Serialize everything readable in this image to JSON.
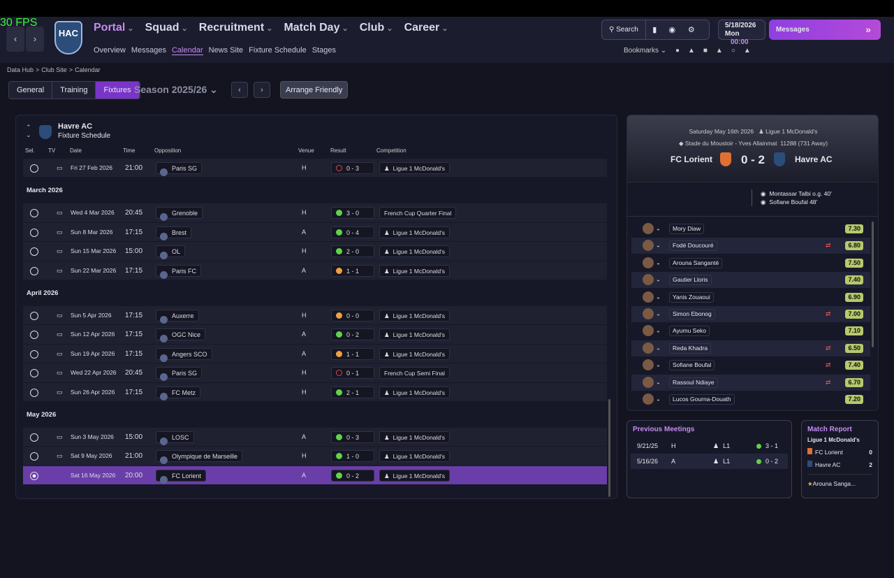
{
  "fps": "30 FPS",
  "club": "HAC",
  "menu": [
    "Portal",
    "Squad",
    "Recruitment",
    "Match Day",
    "Club",
    "Career"
  ],
  "submenu": [
    "Overview",
    "Messages",
    "Calendar",
    "News Site",
    "Fixture Schedule",
    "Stages"
  ],
  "search": "Search",
  "date": "5/18/2026",
  "day": "Mon",
  "time": "00:00",
  "messages": "Messages",
  "bookmarks": "Bookmarks",
  "breadcrumb": [
    "Data Hub",
    "Club Site",
    "Calendar"
  ],
  "tabs": [
    "General",
    "Training",
    "Fixtures"
  ],
  "season": "Season 2025/26",
  "arrange": "Arrange Friendly",
  "fixtures": {
    "team": "Havre AC",
    "subtitle": "Fixture Schedule",
    "columns": [
      "Sel.",
      "TV",
      "Date",
      "Time",
      "Opposition",
      "Venue",
      "Result",
      "Competition"
    ],
    "groups": [
      {
        "rows": [
          {
            "date": "Fri 27 Feb 2026",
            "time": "21:00",
            "opposition": "Paris SG",
            "venue": "H",
            "result": "0 - 3",
            "result_color": "#e04848",
            "competition": "Ligue 1 McDonald's"
          }
        ]
      },
      {
        "month": "March 2026",
        "rows": [
          {
            "date": "Wed 4 Mar 2026",
            "time": "20:45",
            "opposition": "Grenoble",
            "venue": "H",
            "result": "3 - 0",
            "result_color": "#5fd34a",
            "competition": "French Cup Quarter Final"
          },
          {
            "date": "Sun 8 Mar 2026",
            "time": "17:15",
            "opposition": "Brest",
            "venue": "A",
            "result": "0 - 4",
            "result_color": "#5fd34a",
            "competition": "Ligue 1 McDonald's"
          },
          {
            "date": "Sun 15 Mar 2026",
            "time": "15:00",
            "opposition": "OL",
            "venue": "H",
            "result": "2 - 0",
            "result_color": "#5fd34a",
            "competition": "Ligue 1 McDonald's"
          },
          {
            "date": "Sun 22 Mar 2026",
            "time": "17:15",
            "opposition": "Paris FC",
            "venue": "A",
            "result": "1 - 1",
            "result_color": "#f0a040",
            "competition": "Ligue 1 McDonald's"
          }
        ]
      },
      {
        "month": "April 2026",
        "rows": [
          {
            "date": "Sun 5 Apr 2026",
            "time": "17:15",
            "opposition": "Auxerre",
            "venue": "H",
            "result": "0 - 0",
            "result_color": "#f0a040",
            "competition": "Ligue 1 McDonald's"
          },
          {
            "date": "Sun 12 Apr 2026",
            "time": "17:15",
            "opposition": "OGC Nice",
            "venue": "A",
            "result": "0 - 2",
            "result_color": "#5fd34a",
            "competition": "Ligue 1 McDonald's"
          },
          {
            "date": "Sun 19 Apr 2026",
            "time": "17:15",
            "opposition": "Angers SCO",
            "venue": "A",
            "result": "1 - 1",
            "result_color": "#f0a040",
            "competition": "Ligue 1 McDonald's"
          },
          {
            "date": "Wed 22 Apr 2026",
            "time": "20:45",
            "opposition": "Paris SG",
            "venue": "H",
            "result": "0 - 1",
            "result_color": "#e04848",
            "competition": "French Cup Semi Final"
          },
          {
            "date": "Sun 26 Apr 2026",
            "time": "17:15",
            "opposition": "FC Metz",
            "venue": "H",
            "result": "2 - 1",
            "result_color": "#5fd34a",
            "competition": "Ligue 1 McDonald's"
          }
        ]
      },
      {
        "month": "May 2026",
        "rows": [
          {
            "date": "Sun 3 May 2026",
            "time": "15:00",
            "opposition": "LOSC",
            "venue": "A",
            "result": "0 - 3",
            "result_color": "#5fd34a",
            "competition": "Ligue 1 McDonald's"
          },
          {
            "date": "Sat 9 May 2026",
            "time": "21:00",
            "opposition": "Olympique de Marseille",
            "venue": "H",
            "result": "1 - 0",
            "result_color": "#5fd34a",
            "competition": "Ligue 1 McDonald's"
          },
          {
            "date": "Sat 16 May 2026",
            "time": "20:00",
            "opposition": "FC Lorient",
            "venue": "A",
            "result": "0 - 2",
            "result_color": "#5fd34a",
            "competition": "Ligue 1 McDonald's",
            "selected": true
          }
        ]
      }
    ]
  },
  "match": {
    "date": "Saturday May 16th 2026",
    "competition": "Ligue 1 McDonald's",
    "stadium": "Stade du Moustoir - Yves Allainmat",
    "attendance": "11288",
    "away_fans": "(731 Away)",
    "home": "FC Lorient",
    "score": "0 - 2",
    "away": "Havre AC",
    "scorers": [
      "Montassar Talbi o.g. 40'",
      "Sofiane Boufal 48'"
    ],
    "players": [
      {
        "name": "Mory Diaw",
        "rating": "7.30"
      },
      {
        "name": "Fodé Doucouré",
        "rating": "6.80",
        "sub": true
      },
      {
        "name": "Arouna Sanganté",
        "rating": "7.50"
      },
      {
        "name": "Gautier Lloris",
        "rating": "7.40"
      },
      {
        "name": "Yanis Zouaoui",
        "rating": "6.90"
      },
      {
        "name": "Simon Ebonog",
        "rating": "7.00",
        "sub": true
      },
      {
        "name": "Ayumu Seko",
        "rating": "7.10"
      },
      {
        "name": "Reda Khadra",
        "rating": "6.50",
        "sub": true
      },
      {
        "name": "Sofiane Boufal",
        "rating": "7.40",
        "sub": true
      },
      {
        "name": "Rassoul Ndiaye",
        "rating": "6.70",
        "sub": true
      },
      {
        "name": "Lucos Gourna-Douath",
        "rating": "7.20"
      }
    ]
  },
  "previous": {
    "title": "Previous Meetings",
    "rows": [
      [
        "9/21/25",
        "H",
        "L1",
        "3 - 1"
      ],
      [
        "5/16/26",
        "A",
        "L1",
        "0 - 2"
      ]
    ]
  },
  "report": {
    "title": "Match Report",
    "competition": "Ligue 1 McDonald's",
    "teams": [
      [
        "FC Lorient",
        "0"
      ],
      [
        "Havre AC",
        "2"
      ]
    ],
    "star": "Arouna Sanga..."
  }
}
